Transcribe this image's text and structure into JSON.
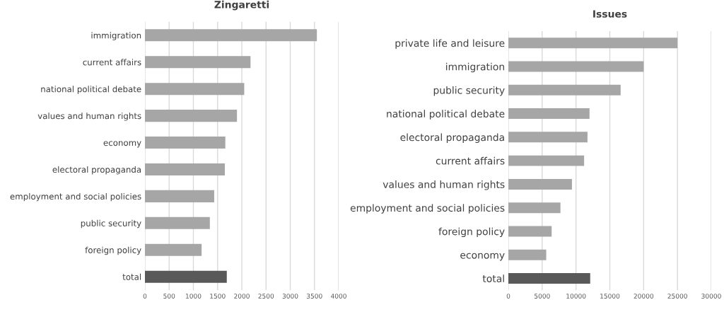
{
  "chart_data": [
    {
      "type": "bar",
      "orientation": "horizontal",
      "title": "Zingaretti",
      "categories": [
        "immigration",
        "current affairs",
        "national political debate",
        "values and human rights",
        "economy",
        "electoral propaganda",
        "employment and social policies",
        "public security",
        "foreign policy",
        "total"
      ],
      "values": [
        3550,
        2180,
        2050,
        1900,
        1660,
        1650,
        1430,
        1340,
        1170,
        1690
      ],
      "colors": [
        "#a6a6a6",
        "#a6a6a6",
        "#a6a6a6",
        "#a6a6a6",
        "#a6a6a6",
        "#a6a6a6",
        "#a6a6a6",
        "#a6a6a6",
        "#a6a6a6",
        "#595959"
      ],
      "xlim": [
        0,
        4000
      ],
      "xticks": [
        0,
        500,
        1000,
        1500,
        2000,
        2500,
        3000,
        3500,
        4000
      ],
      "grid": "x",
      "legend": false
    },
    {
      "type": "bar",
      "orientation": "horizontal",
      "title": "Issues",
      "categories": [
        "private life and leisure",
        "immigration",
        "public security",
        "national political debate",
        "electoral propaganda",
        "current affairs",
        "values and human rights",
        "employment and social policies",
        "foreign policy",
        "economy",
        "total"
      ],
      "values": [
        25000,
        20000,
        16600,
        12000,
        11700,
        11200,
        9400,
        7700,
        6400,
        5600,
        12100
      ],
      "colors": [
        "#a6a6a6",
        "#a6a6a6",
        "#a6a6a6",
        "#a6a6a6",
        "#a6a6a6",
        "#a6a6a6",
        "#a6a6a6",
        "#a6a6a6",
        "#a6a6a6",
        "#a6a6a6",
        "#595959"
      ],
      "xlim": [
        0,
        30000
      ],
      "xticks": [
        0,
        5000,
        10000,
        15000,
        20000,
        25000,
        30000
      ],
      "grid": "x",
      "legend": false
    }
  ]
}
